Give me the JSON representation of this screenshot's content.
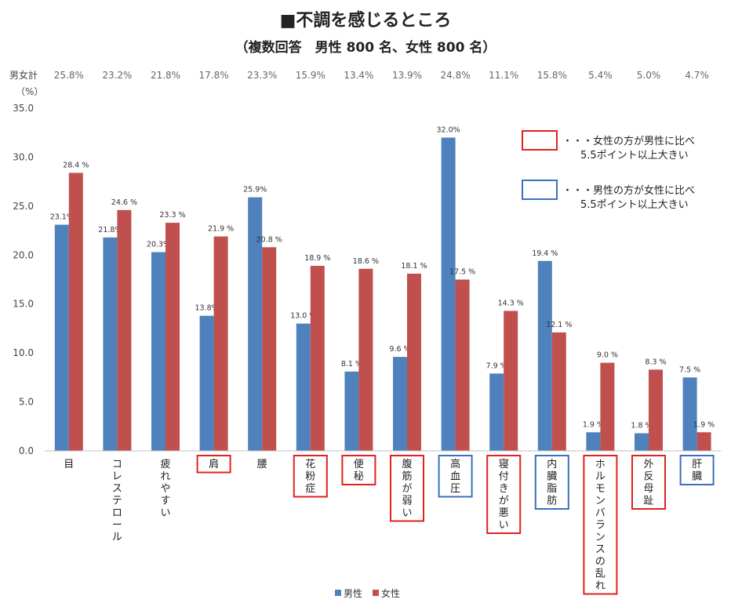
{
  "page": {
    "title": "■不調を感じるところ",
    "subtitle": "（複数回答　男性 800 名、女性 800 名）"
  },
  "chart_data": {
    "type": "bar",
    "ylabel": "（%）",
    "ylim": [
      0,
      35
    ],
    "yticks": [
      "0.0",
      "5.0",
      "10.0",
      "15.0",
      "20.0",
      "25.0",
      "30.0",
      "35.0"
    ],
    "total_row_label": "男女計",
    "categories": [
      "目",
      "コレステロール",
      "疲れやすい",
      "肩",
      "腰",
      "花粉症",
      "便秘",
      "腹筋が弱い",
      "高血圧",
      "寝付きが悪い",
      "内臓脂肪",
      "ホルモンバランスの乱れ",
      "外反母趾",
      "肝臓"
    ],
    "totals": [
      "25.8%",
      "23.2%",
      "21.8%",
      "17.8%",
      "23.3%",
      "15.9%",
      "13.4%",
      "13.9%",
      "24.8%",
      "11.1%",
      "15.8%",
      "5.4%",
      "5.0%",
      "4.7%"
    ],
    "series": [
      {
        "name": "男性",
        "color": "#4f81bd",
        "values": [
          23.1,
          21.8,
          20.3,
          13.8,
          25.9,
          13.0,
          8.1,
          9.6,
          32.0,
          7.9,
          19.4,
          1.9,
          1.8,
          7.5
        ],
        "labels": [
          "23.1%",
          "21.8%",
          "20.3%",
          "13.8%",
          "25.9%",
          "13.0 %",
          "8.1 %",
          "9.6 %",
          "32.0%",
          "7.9 %",
          "19.4 %",
          "1.9 %",
          "1.8 %",
          "7.5 %"
        ]
      },
      {
        "name": "女性",
        "color": "#c0504d",
        "values": [
          28.4,
          24.6,
          23.3,
          21.9,
          20.8,
          18.9,
          18.6,
          18.1,
          17.5,
          14.3,
          12.1,
          9.0,
          8.3,
          1.9
        ],
        "labels": [
          "28.4 %",
          "24.6 %",
          "23.3 %",
          "21.9 %",
          "20.8 %",
          "18.9 %",
          "18.6 %",
          "18.1 %",
          "17.5 %",
          "14.3 %",
          "12.1 %",
          "9.0 %",
          "8.3 %",
          "1.9 %"
        ]
      }
    ],
    "highlights": [
      "none",
      "none",
      "none",
      "female",
      "none",
      "female",
      "female",
      "female",
      "male",
      "female",
      "male",
      "female",
      "female",
      "male"
    ],
    "highlight_colors": {
      "female": "#e32020",
      "male": "#3c6fbf"
    },
    "key": [
      {
        "kind": "female",
        "line1": "・・・女性の方が男性に比べ",
        "line2": "5.5ポイント以上大きい"
      },
      {
        "kind": "male",
        "line1": "・・・男性の方が女性に比べ",
        "line2": "5.5ポイント以上大きい"
      }
    ]
  }
}
